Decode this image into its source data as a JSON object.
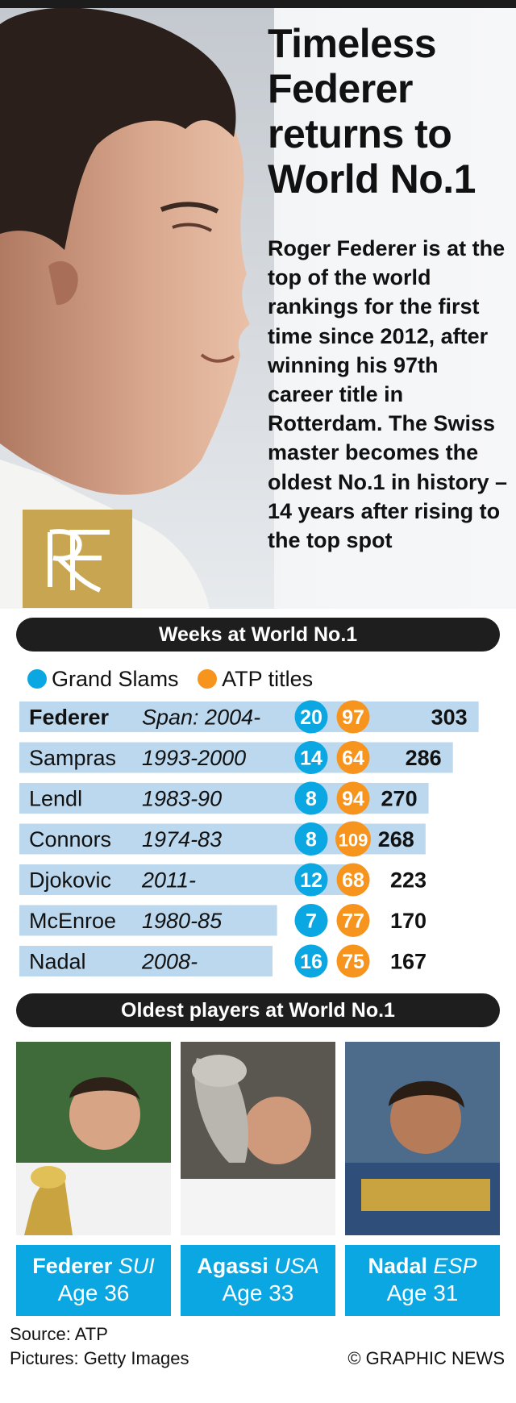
{
  "title_lines": [
    "Timeless",
    "Federer",
    "returns to",
    "World No.1"
  ],
  "intro": "Roger Federer is at the top of the world rankings for the first time since 2012, after winning his 97th career title in Rotterdam. The Swiss master becomes the oldest No.1 in history – 14 years after rising to the top spot",
  "logo_text": "RF",
  "section1_title": "Weeks at World No.1",
  "legend": [
    {
      "label": "Grand Slams",
      "color": "#0aa7e2"
    },
    {
      "label": "ATP titles",
      "color": "#f7941d"
    }
  ],
  "chart_data": {
    "type": "bar",
    "title": "Weeks at World No.1",
    "series_names": [
      "Grand Slams",
      "ATP titles"
    ],
    "categories": [
      "Federer",
      "Sampras",
      "Lendl",
      "Connors",
      "Djokovic",
      "McEnroe",
      "Nadal"
    ],
    "spans": [
      "Span: 2004-",
      "1993-2000",
      "1983-90",
      "1974-83",
      "2011-",
      "1980-85",
      "2008-"
    ],
    "weeks": [
      303,
      286,
      270,
      268,
      223,
      170,
      167
    ],
    "grand_slams": [
      20,
      14,
      8,
      8,
      12,
      7,
      16
    ],
    "atp_titles": [
      97,
      64,
      94,
      109,
      68,
      77,
      75
    ],
    "highlight": "Federer"
  },
  "section2_title": "Oldest players at World No.1",
  "players": [
    {
      "name": "Federer",
      "country": "SUI",
      "age": "Age 36"
    },
    {
      "name": "Agassi",
      "country": "USA",
      "age": "Age 33"
    },
    {
      "name": "Nadal",
      "country": "ESP",
      "age": "Age 31"
    }
  ],
  "source": "Source: ATP",
  "pictures": "Pictures: Getty Images",
  "credit": "© GRAPHIC NEWS",
  "colors": {
    "grand_slams": "#0aa7e2",
    "atp_titles": "#f7941d",
    "bar": "#bcd8ee",
    "logo": "#c8a550"
  }
}
